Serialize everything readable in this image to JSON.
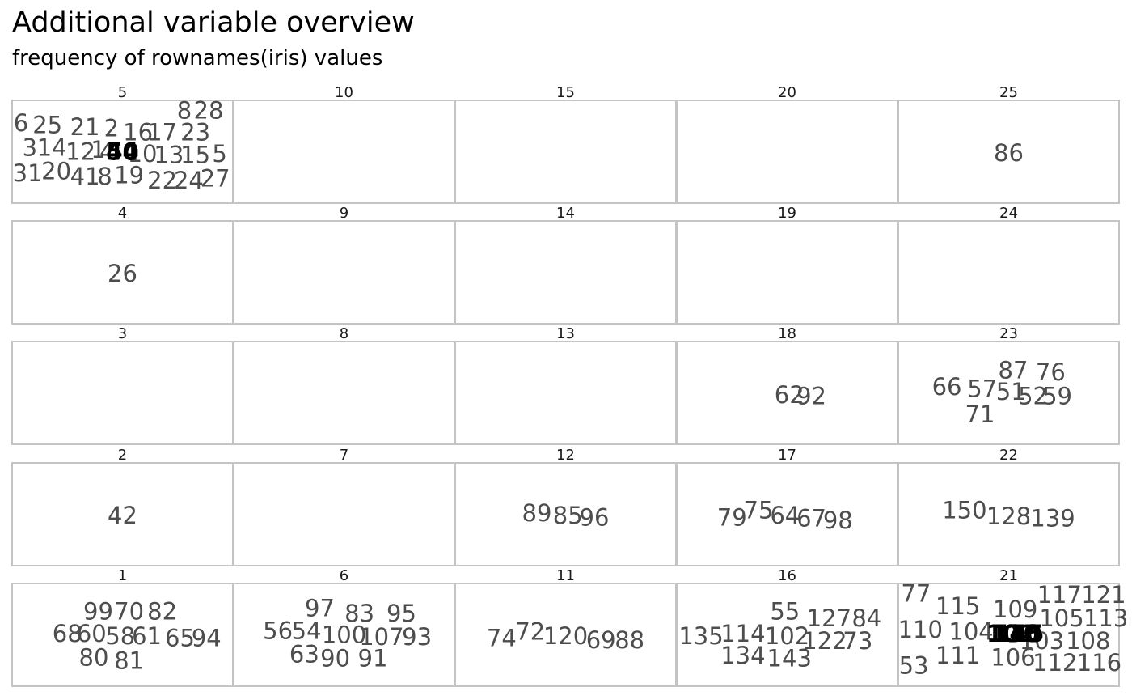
{
  "title": "Additional variable overview",
  "subtitle": "frequency of rownames(iris) values",
  "chart_data": {
    "type": "word-cloud-facets",
    "facet_order_rows": [
      [
        "5",
        "10",
        "15",
        "20",
        "25"
      ],
      [
        "4",
        "9",
        "14",
        "19",
        "24"
      ],
      [
        "3",
        "8",
        "13",
        "18",
        "23"
      ],
      [
        "2",
        "7",
        "12",
        "17",
        "22"
      ],
      [
        "1",
        "6",
        "11",
        "16",
        "21"
      ]
    ],
    "panels": {
      "5": {
        "label": "5",
        "words": [
          {
            "text": "6",
            "x": 0.04,
            "y": 0.22
          },
          {
            "text": "25",
            "x": 0.16,
            "y": 0.24
          },
          {
            "text": "21",
            "x": 0.33,
            "y": 0.26
          },
          {
            "text": "2",
            "x": 0.45,
            "y": 0.27
          },
          {
            "text": "16",
            "x": 0.57,
            "y": 0.31
          },
          {
            "text": "17",
            "x": 0.68,
            "y": 0.31
          },
          {
            "text": "8",
            "x": 0.78,
            "y": 0.1
          },
          {
            "text": "28",
            "x": 0.89,
            "y": 0.1
          },
          {
            "text": "23",
            "x": 0.83,
            "y": 0.31
          },
          {
            "text": "3",
            "x": 0.08,
            "y": 0.46
          },
          {
            "text": "14",
            "x": 0.18,
            "y": 0.46
          },
          {
            "text": "12",
            "x": 0.31,
            "y": 0.5
          },
          {
            "text": "1",
            "x": 0.39,
            "y": 0.48
          },
          {
            "text": "4",
            "x": 0.43,
            "y": 0.5
          },
          {
            "text": "10",
            "x": 0.59,
            "y": 0.52
          },
          {
            "text": "13",
            "x": 0.71,
            "y": 0.53
          },
          {
            "text": "15",
            "x": 0.83,
            "y": 0.53
          },
          {
            "text": "5",
            "x": 0.94,
            "y": 0.52
          },
          {
            "text": "31",
            "x": 0.07,
            "y": 0.71
          },
          {
            "text": "20",
            "x": 0.2,
            "y": 0.69
          },
          {
            "text": "41",
            "x": 0.33,
            "y": 0.74
          },
          {
            "text": "8",
            "x": 0.42,
            "y": 0.74
          },
          {
            "text": "19",
            "x": 0.53,
            "y": 0.73
          },
          {
            "text": "22",
            "x": 0.68,
            "y": 0.78
          },
          {
            "text": "24",
            "x": 0.8,
            "y": 0.78
          },
          {
            "text": "27",
            "x": 0.92,
            "y": 0.76
          },
          {
            "text": "40",
            "x": 0.5,
            "y": 0.5,
            "dense": true
          },
          {
            "text": "44",
            "x": 0.5,
            "y": 0.5,
            "dense": true
          },
          {
            "text": "50",
            "x": 0.5,
            "y": 0.5,
            "dense": true
          }
        ]
      },
      "10": {
        "label": "10",
        "words": []
      },
      "15": {
        "label": "15",
        "words": []
      },
      "20": {
        "label": "20",
        "words": []
      },
      "25": {
        "label": "25",
        "words": [
          {
            "text": "86",
            "x": 0.5,
            "y": 0.51
          }
        ]
      },
      "4": {
        "label": "4",
        "words": [
          {
            "text": "26",
            "x": 0.5,
            "y": 0.51
          }
        ]
      },
      "9": {
        "label": "9",
        "words": []
      },
      "14": {
        "label": "14",
        "words": []
      },
      "19": {
        "label": "19",
        "words": []
      },
      "24": {
        "label": "24",
        "words": []
      },
      "3": {
        "label": "3",
        "words": []
      },
      "8": {
        "label": "8",
        "words": []
      },
      "13": {
        "label": "13",
        "words": []
      },
      "18": {
        "label": "18",
        "words": [
          {
            "text": "62",
            "x": 0.51,
            "y": 0.52
          },
          {
            "text": "92",
            "x": 0.61,
            "y": 0.53
          }
        ]
      },
      "23": {
        "label": "23",
        "words": [
          {
            "text": "87",
            "x": 0.52,
            "y": 0.28
          },
          {
            "text": "76",
            "x": 0.69,
            "y": 0.3
          },
          {
            "text": "66",
            "x": 0.22,
            "y": 0.44
          },
          {
            "text": "57",
            "x": 0.38,
            "y": 0.46
          },
          {
            "text": "51",
            "x": 0.51,
            "y": 0.49
          },
          {
            "text": "52",
            "x": 0.61,
            "y": 0.53
          },
          {
            "text": "59",
            "x": 0.72,
            "y": 0.53
          },
          {
            "text": "71",
            "x": 0.37,
            "y": 0.71
          }
        ]
      },
      "2": {
        "label": "2",
        "words": [
          {
            "text": "42",
            "x": 0.5,
            "y": 0.51
          }
        ]
      },
      "7": {
        "label": "7",
        "words": []
      },
      "12": {
        "label": "12",
        "words": [
          {
            "text": "89",
            "x": 0.37,
            "y": 0.49
          },
          {
            "text": "85",
            "x": 0.51,
            "y": 0.51
          },
          {
            "text": "96",
            "x": 0.63,
            "y": 0.53
          }
        ]
      },
      "17": {
        "label": "17",
        "words": [
          {
            "text": "79",
            "x": 0.25,
            "y": 0.53
          },
          {
            "text": "75",
            "x": 0.37,
            "y": 0.46
          },
          {
            "text": "64",
            "x": 0.49,
            "y": 0.51
          },
          {
            "text": "67",
            "x": 0.61,
            "y": 0.54
          },
          {
            "text": "98",
            "x": 0.73,
            "y": 0.56
          }
        ]
      },
      "22": {
        "label": "22",
        "words": [
          {
            "text": "150",
            "x": 0.3,
            "y": 0.46
          },
          {
            "text": "128",
            "x": 0.5,
            "y": 0.52
          },
          {
            "text": "139",
            "x": 0.7,
            "y": 0.54
          }
        ]
      },
      "1": {
        "label": "1",
        "words": [
          {
            "text": "99",
            "x": 0.39,
            "y": 0.27
          },
          {
            "text": "70",
            "x": 0.53,
            "y": 0.27
          },
          {
            "text": "82",
            "x": 0.68,
            "y": 0.27
          },
          {
            "text": "68",
            "x": 0.25,
            "y": 0.49
          },
          {
            "text": "60",
            "x": 0.36,
            "y": 0.49
          },
          {
            "text": "58",
            "x": 0.49,
            "y": 0.51
          },
          {
            "text": "61",
            "x": 0.61,
            "y": 0.51
          },
          {
            "text": "65",
            "x": 0.76,
            "y": 0.53
          },
          {
            "text": "94",
            "x": 0.88,
            "y": 0.53
          },
          {
            "text": "80",
            "x": 0.37,
            "y": 0.72
          },
          {
            "text": "81",
            "x": 0.53,
            "y": 0.75
          }
        ]
      },
      "6": {
        "label": "6",
        "words": [
          {
            "text": "97",
            "x": 0.39,
            "y": 0.24
          },
          {
            "text": "83",
            "x": 0.57,
            "y": 0.29
          },
          {
            "text": "95",
            "x": 0.76,
            "y": 0.29
          },
          {
            "text": "56",
            "x": 0.2,
            "y": 0.46
          },
          {
            "text": "54",
            "x": 0.33,
            "y": 0.46
          },
          {
            "text": "100",
            "x": 0.5,
            "y": 0.5
          },
          {
            "text": "107",
            "x": 0.67,
            "y": 0.52
          },
          {
            "text": "93",
            "x": 0.83,
            "y": 0.52
          },
          {
            "text": "63",
            "x": 0.32,
            "y": 0.69
          },
          {
            "text": "90",
            "x": 0.46,
            "y": 0.73
          },
          {
            "text": "91",
            "x": 0.63,
            "y": 0.73
          }
        ]
      },
      "11": {
        "label": "11",
        "words": [
          {
            "text": "74",
            "x": 0.21,
            "y": 0.53
          },
          {
            "text": "72",
            "x": 0.34,
            "y": 0.47
          },
          {
            "text": "120",
            "x": 0.5,
            "y": 0.51
          },
          {
            "text": "69",
            "x": 0.66,
            "y": 0.55
          },
          {
            "text": "88",
            "x": 0.79,
            "y": 0.55
          }
        ]
      },
      "16": {
        "label": "16",
        "words": [
          {
            "text": "55",
            "x": 0.49,
            "y": 0.27
          },
          {
            "text": "127",
            "x": 0.69,
            "y": 0.34
          },
          {
            "text": "84",
            "x": 0.86,
            "y": 0.34
          },
          {
            "text": "135",
            "x": 0.11,
            "y": 0.51
          },
          {
            "text": "114",
            "x": 0.3,
            "y": 0.49
          },
          {
            "text": "102",
            "x": 0.5,
            "y": 0.51
          },
          {
            "text": "122",
            "x": 0.67,
            "y": 0.56
          },
          {
            "text": "73",
            "x": 0.82,
            "y": 0.56
          },
          {
            "text": "134",
            "x": 0.3,
            "y": 0.7
          },
          {
            "text": "143",
            "x": 0.51,
            "y": 0.73
          }
        ]
      },
      "21": {
        "label": "21",
        "words": [
          {
            "text": "77",
            "x": 0.08,
            "y": 0.1
          },
          {
            "text": "115",
            "x": 0.27,
            "y": 0.22
          },
          {
            "text": "109",
            "x": 0.53,
            "y": 0.25
          },
          {
            "text": "117",
            "x": 0.73,
            "y": 0.11
          },
          {
            "text": "121",
            "x": 0.93,
            "y": 0.11
          },
          {
            "text": "110",
            "x": 0.1,
            "y": 0.45
          },
          {
            "text": "104",
            "x": 0.33,
            "y": 0.47
          },
          {
            "text": "105",
            "x": 0.74,
            "y": 0.34
          },
          {
            "text": "113",
            "x": 0.94,
            "y": 0.34
          },
          {
            "text": "103",
            "x": 0.65,
            "y": 0.56
          },
          {
            "text": "108",
            "x": 0.86,
            "y": 0.56
          },
          {
            "text": "53",
            "x": 0.07,
            "y": 0.8
          },
          {
            "text": "111",
            "x": 0.27,
            "y": 0.7
          },
          {
            "text": "106",
            "x": 0.52,
            "y": 0.72
          },
          {
            "text": "112",
            "x": 0.71,
            "y": 0.77
          },
          {
            "text": "116",
            "x": 0.91,
            "y": 0.77
          },
          {
            "text": "101",
            "x": 0.51,
            "y": 0.49,
            "dense": true
          },
          {
            "text": "130",
            "x": 0.53,
            "y": 0.49,
            "dense": true
          },
          {
            "text": "140",
            "x": 0.54,
            "y": 0.49,
            "dense": true
          },
          {
            "text": "145",
            "x": 0.55,
            "y": 0.49,
            "dense": true
          }
        ]
      }
    }
  }
}
